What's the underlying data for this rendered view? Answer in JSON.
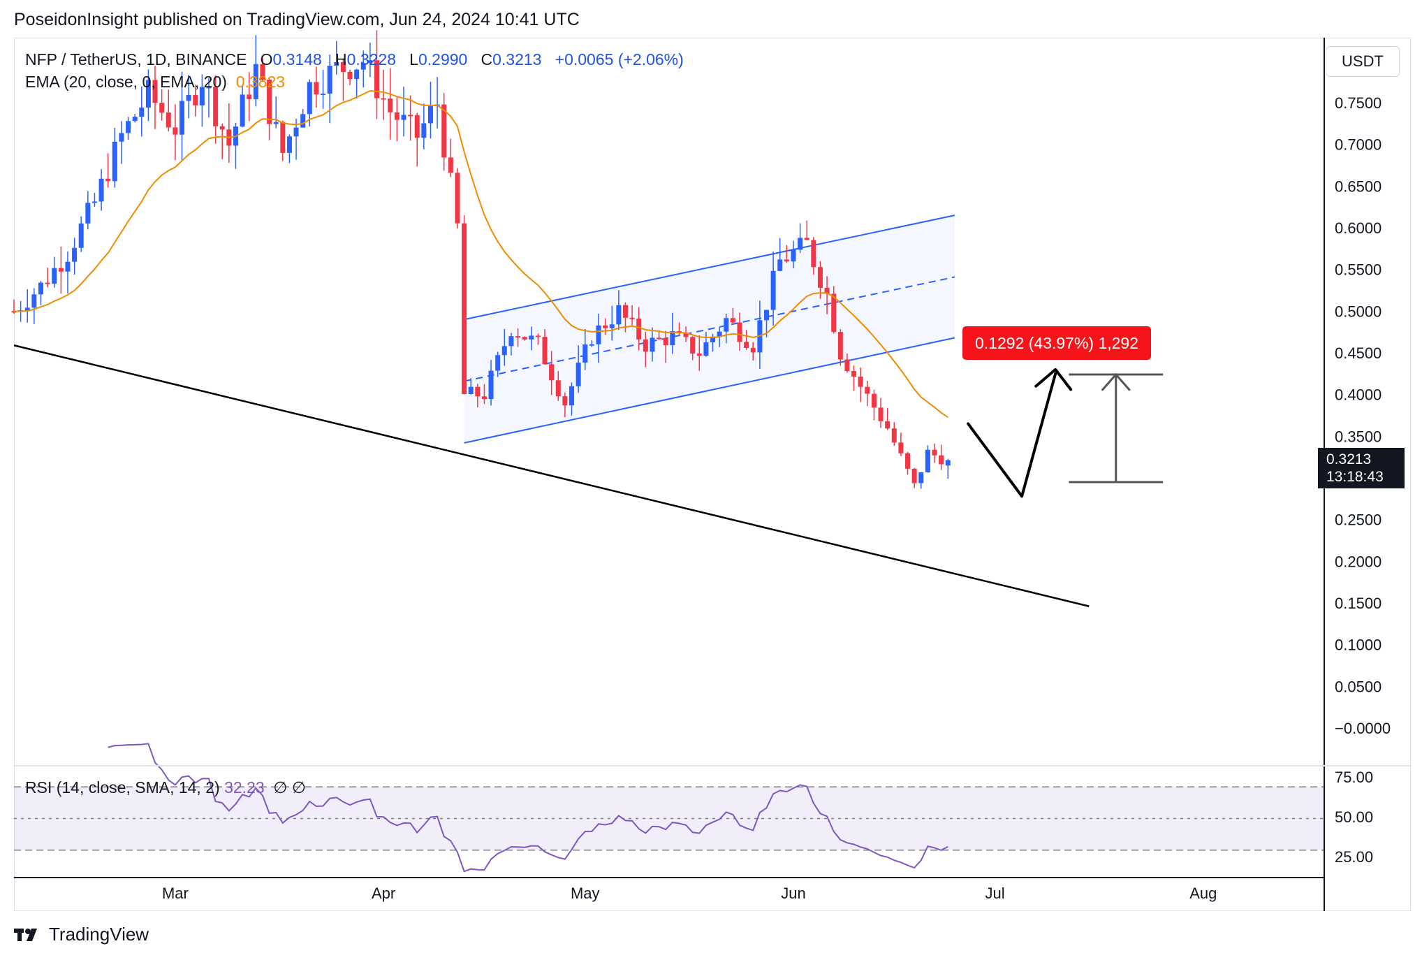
{
  "header": {
    "published": "PoseidonInsight published on TradingView.com, Jun 24, 2024 10:41 UTC"
  },
  "legend": {
    "symbol": "NFP / TetherUS, 1D, BINANCE",
    "open_label": "O",
    "open": "0.3148",
    "high_label": "H",
    "high": "0.3228",
    "low_label": "L",
    "low": "0.2990",
    "close_label": "C",
    "close": "0.3213",
    "change": "+0.0065 (+2.06%)",
    "ema_label": "EMA (20, close, 0, EMA, 20)",
    "ema_value": "0.3823",
    "rsi_label": "RSI (14, close, SMA, 14, 2)",
    "rsi_value": "32.23",
    "rsi_extra": "∅ ∅"
  },
  "price_axis": {
    "currency": "USDT",
    "ticks": [
      "0.7500",
      "0.7000",
      "0.6500",
      "0.6000",
      "0.5500",
      "0.5000",
      "0.4500",
      "0.4000",
      "0.3500",
      "0.2500",
      "0.2000",
      "0.1500",
      "0.1000",
      "0.0500",
      "−0.0000"
    ],
    "current_price": "0.3213",
    "countdown": "13:18:43"
  },
  "rsi_axis": {
    "ticks": [
      "75.00",
      "50.00",
      "25.00"
    ]
  },
  "time_axis": {
    "labels": [
      "Mar",
      "Apr",
      "May",
      "Jun",
      "Jul",
      "Aug"
    ]
  },
  "measure": {
    "label": "0.1292 (43.97%) 1,292"
  },
  "footer": {
    "brand": "TradingView"
  },
  "colors": {
    "up": "#2962ff",
    "down": "#f23645",
    "ema": "#f08c00",
    "channel": "#2962ff",
    "rsi": "#7e57c2",
    "measure": "#f7131a"
  },
  "chart_data": {
    "type": "candlestick",
    "title": "NFP / TetherUS, 1D, BINANCE",
    "price_range": [
      -0.04,
      0.79
    ],
    "x_range": [
      "2024-02-06",
      "2024-08-19"
    ],
    "series": [
      {
        "name": "EMA (20, close, 0, EMA, 20)",
        "last": 0.3823
      },
      {
        "name": "RSI (14, close, SMA, 14, 2)",
        "last": 32.23,
        "levels": [
          70,
          50,
          30
        ]
      }
    ],
    "close_path": [
      [
        "2024-02-06",
        0.5
      ],
      [
        "2024-02-10",
        0.53
      ],
      [
        "2024-02-14",
        0.57
      ],
      [
        "2024-02-18",
        0.63
      ],
      [
        "2024-02-22",
        0.71
      ],
      [
        "2024-02-26",
        0.76
      ],
      [
        "2024-03-01",
        0.72
      ],
      [
        "2024-03-05",
        0.78
      ],
      [
        "2024-03-09",
        0.7
      ],
      [
        "2024-03-13",
        0.79
      ],
      [
        "2024-03-17",
        0.69
      ],
      [
        "2024-03-21",
        0.77
      ],
      [
        "2024-03-25",
        0.79
      ],
      [
        "2024-03-29",
        0.8
      ],
      [
        "2024-04-02",
        0.74
      ],
      [
        "2024-04-06",
        0.71
      ],
      [
        "2024-04-09",
        0.75
      ],
      [
        "2024-04-12",
        0.6
      ],
      [
        "2024-04-13",
        0.4
      ],
      [
        "2024-04-16",
        0.4
      ],
      [
        "2024-04-20",
        0.48
      ],
      [
        "2024-04-24",
        0.46
      ],
      [
        "2024-04-28",
        0.39
      ],
      [
        "2024-05-02",
        0.47
      ],
      [
        "2024-05-06",
        0.5
      ],
      [
        "2024-05-10",
        0.46
      ],
      [
        "2024-05-14",
        0.47
      ],
      [
        "2024-05-18",
        0.45
      ],
      [
        "2024-05-22",
        0.49
      ],
      [
        "2024-05-26",
        0.46
      ],
      [
        "2024-05-30",
        0.56
      ],
      [
        "2024-06-03",
        0.58
      ],
      [
        "2024-06-06",
        0.52
      ],
      [
        "2024-06-08",
        0.45
      ],
      [
        "2024-06-11",
        0.41
      ],
      [
        "2024-06-15",
        0.36
      ],
      [
        "2024-06-19",
        0.29
      ],
      [
        "2024-06-21",
        0.33
      ],
      [
        "2024-06-24",
        0.3213
      ]
    ]
  }
}
